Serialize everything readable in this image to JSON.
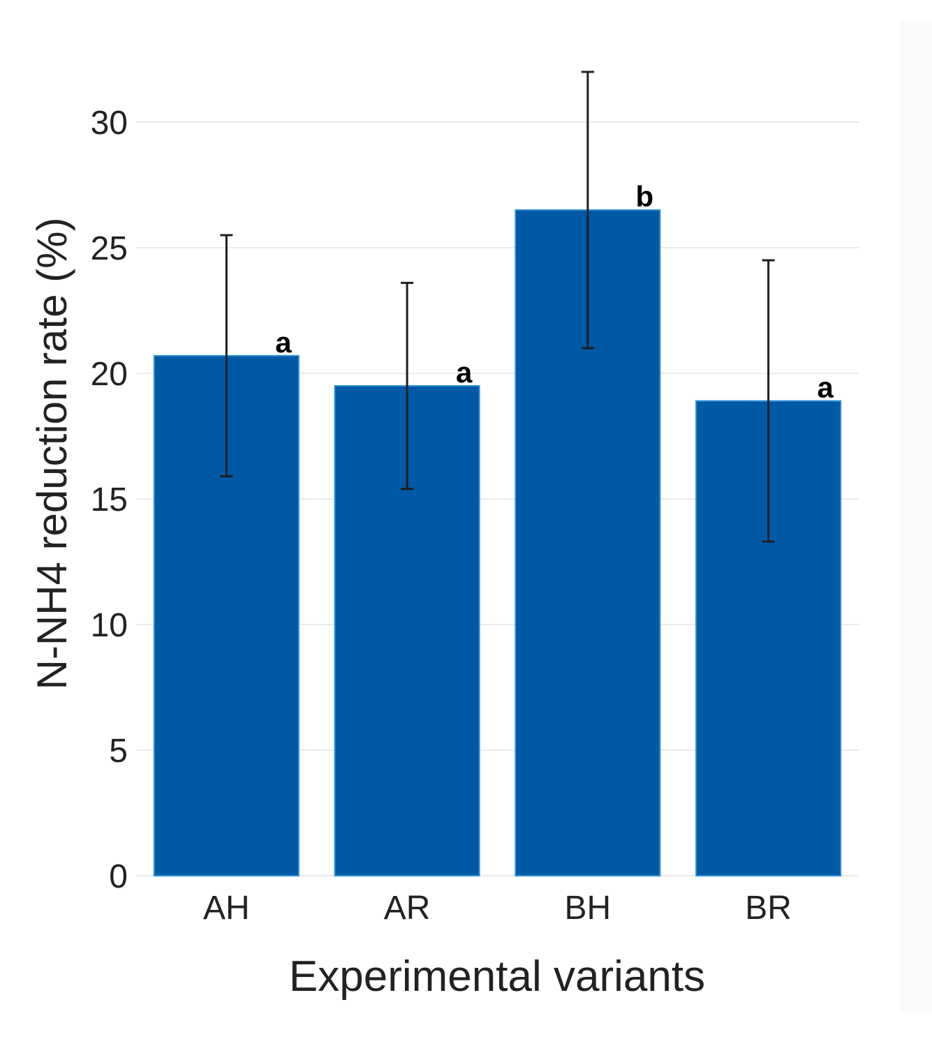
{
  "chart_data": {
    "type": "bar",
    "title": "",
    "xlabel": "Experimental variants",
    "ylabel": "N-NH4 reduction rate (%)",
    "categories": [
      "AH",
      "AR",
      "BH",
      "BR"
    ],
    "values": [
      20.7,
      19.5,
      26.5,
      18.9
    ],
    "error_low": [
      15.9,
      15.4,
      21.0,
      13.3
    ],
    "error_high": [
      25.5,
      23.6,
      32.0,
      24.5
    ],
    "significance_labels": [
      "a",
      "a",
      "b",
      "a"
    ],
    "ylim": [
      0,
      30
    ],
    "yticks": [
      0,
      5,
      10,
      15,
      20,
      25,
      30
    ],
    "grid": true,
    "legend": "none",
    "colors": {
      "bar_fill": "#0059a5",
      "bar_edge": "#2a8fd6",
      "error_bar": "#1e1e1e",
      "grid": "#ececec",
      "text": "#222222",
      "background": "#ffffff"
    }
  }
}
